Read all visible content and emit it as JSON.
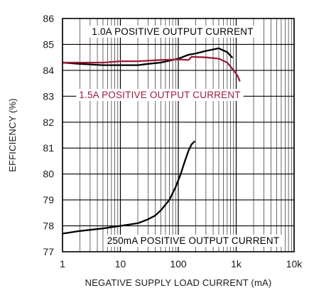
{
  "chart_data": {
    "type": "line",
    "xlabel": "NEGATIVE SUPPLY LOAD CURRENT (mA)",
    "ylabel": "EFFICIENCY (%)",
    "xscale": "log",
    "xlim": [
      1,
      10000
    ],
    "ylim": [
      77,
      86
    ],
    "grid": true,
    "x_ticks": [
      {
        "value": 1,
        "label": "1"
      },
      {
        "value": 10,
        "label": "10"
      },
      {
        "value": 100,
        "label": "100"
      },
      {
        "value": 1000,
        "label": "1k"
      },
      {
        "value": 10000,
        "label": "10k"
      }
    ],
    "y_ticks": [
      {
        "value": 77,
        "label": "77"
      },
      {
        "value": 78,
        "label": "78"
      },
      {
        "value": 79,
        "label": "79"
      },
      {
        "value": 80,
        "label": "80"
      },
      {
        "value": 81,
        "label": "81"
      },
      {
        "value": 82,
        "label": "82"
      },
      {
        "value": 83,
        "label": "83"
      },
      {
        "value": 84,
        "label": "84"
      },
      {
        "value": 85,
        "label": "85"
      },
      {
        "value": 86,
        "label": "86"
      }
    ],
    "series": [
      {
        "name": "1.0A POSITIVE OUTPUT CURRENT",
        "color": "#000000",
        "points": [
          [
            1,
            84.3
          ],
          [
            2,
            84.25
          ],
          [
            5,
            84.2
          ],
          [
            10,
            84.2
          ],
          [
            20,
            84.2
          ],
          [
            30,
            84.25
          ],
          [
            50,
            84.3
          ],
          [
            100,
            84.45
          ],
          [
            150,
            84.6
          ],
          [
            200,
            84.65
          ],
          [
            300,
            84.75
          ],
          [
            500,
            84.85
          ],
          [
            700,
            84.7
          ],
          [
            850,
            84.5
          ]
        ]
      },
      {
        "name": "1.5A POSITIVE OUTPUT CURRENT",
        "color": "#9b1c3c",
        "points": [
          [
            1,
            84.3
          ],
          [
            2,
            84.3
          ],
          [
            5,
            84.3
          ],
          [
            10,
            84.35
          ],
          [
            20,
            84.35
          ],
          [
            50,
            84.4
          ],
          [
            100,
            84.42
          ],
          [
            150,
            84.4
          ],
          [
            170,
            84.52
          ],
          [
            300,
            84.5
          ],
          [
            500,
            84.45
          ],
          [
            700,
            84.3
          ],
          [
            900,
            84.0
          ],
          [
            1050,
            83.8
          ],
          [
            1150,
            83.6
          ]
        ]
      },
      {
        "name": "250mA POSITIVE OUTPUT CURRENT",
        "color": "#000000",
        "points": [
          [
            1,
            77.7
          ],
          [
            2,
            77.8
          ],
          [
            5,
            77.9
          ],
          [
            10,
            78.0
          ],
          [
            20,
            78.1
          ],
          [
            30,
            78.25
          ],
          [
            40,
            78.4
          ],
          [
            50,
            78.6
          ],
          [
            70,
            79.0
          ],
          [
            90,
            79.5
          ],
          [
            110,
            80.0
          ],
          [
            130,
            80.5
          ],
          [
            150,
            80.9
          ],
          [
            170,
            81.15
          ],
          [
            190,
            81.25
          ]
        ]
      }
    ]
  }
}
